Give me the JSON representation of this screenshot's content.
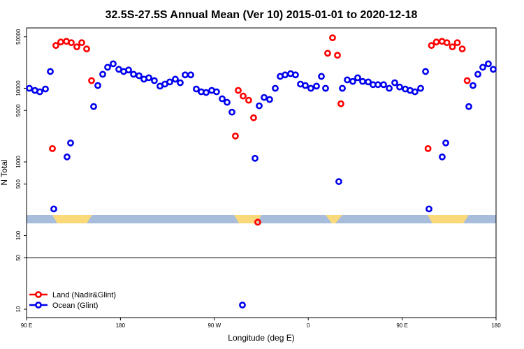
{
  "chart_data": {
    "type": "scatter",
    "title": "32.5S-27.5S Annual Mean (Ver 10)   2015-01-01 to 2020-12-18",
    "x_label": "Longitude (deg E)",
    "y_label": "N Total",
    "xlim": [
      90,
      540
    ],
    "xticks": [
      {
        "value": 90,
        "label": "90 E"
      },
      180,
      {
        "value": 270,
        "label": "90 W"
      },
      {
        "value": 360,
        "label": "0"
      },
      {
        "value": 450,
        "label": "90 E"
      },
      {
        "value": 540,
        "label": "180"
      }
    ],
    "ylim": [
      7.7,
      66000
    ],
    "ylog": true,
    "yticks": [
      10,
      50,
      100,
      500,
      1000,
      5000,
      10000,
      50000
    ],
    "hline": 50,
    "legend": "lower left",
    "series": [
      {
        "name": "Land (Nadir&Glint)",
        "color": "#ff0000",
        "x": [
          114.8,
          118.1,
          122.8,
          128.2,
          132.9,
          138.2,
          142.9,
          147.6,
          152.3,
          290.2,
          292.9,
          297.6,
          302.9,
          307.6,
          311.6,
          378.6,
          383.3,
          388.0,
          391.3,
          474.8,
          478.1,
          482.8,
          488.2,
          492.9,
          498.2,
          502.9,
          507.6,
          512.3
        ],
        "values": [
          1517,
          38100,
          42500,
          43400,
          41600,
          36500,
          41600,
          34200,
          12700,
          2250,
          9360,
          7850,
          6880,
          3980,
          152,
          29900,
          48500,
          28100,
          6170,
          1517,
          38100,
          42500,
          43400,
          41600,
          36500,
          41600,
          34200,
          12700
        ]
      },
      {
        "name": "Ocean (Glint)",
        "color": "#0000ee",
        "x": [
          92.7,
          98.0,
          102.7,
          108.1,
          112.8,
          116.1,
          128.8,
          132.2,
          154.3,
          158.3,
          163.0,
          167.7,
          173.0,
          178.4,
          183.1,
          187.8,
          192.5,
          197.8,
          202.5,
          207.2,
          212.5,
          217.9,
          222.6,
          227.3,
          232.6,
          237.3,
          242.0,
          247.4,
          252.7,
          257.4,
          262.1,
          267.5,
          272.1,
          277.5,
          282.2,
          286.9,
          296.9,
          309.0,
          313.0,
          317.7,
          323.0,
          328.4,
          333.1,
          337.8,
          343.1,
          347.8,
          352.5,
          357.2,
          362.5,
          367.9,
          372.6,
          376.6,
          389.3,
          392.7,
          397.4,
          402.7,
          407.4,
          412.1,
          417.5,
          422.1,
          426.8,
          432.2,
          437.6,
          442.9,
          447.6,
          453.0,
          457.6,
          462.3,
          467.7,
          472.4,
          475.7,
          488.4,
          491.8,
          513.9,
          517.9,
          522.6,
          527.3,
          532.6,
          537.3
        ],
        "values": [
          10000,
          9360,
          8960,
          9780,
          16900,
          230,
          1170,
          1810,
          5650,
          10900,
          15500,
          19300,
          21500,
          18100,
          16900,
          17700,
          15500,
          14800,
          13300,
          13900,
          12700,
          10700,
          11400,
          12200,
          13300,
          11900,
          15200,
          15200,
          9780,
          8960,
          8770,
          9360,
          8960,
          7200,
          6450,
          4740,
          11.4,
          1120,
          5780,
          7510,
          7050,
          10000,
          14500,
          15200,
          15800,
          15200,
          11400,
          10900,
          10000,
          10700,
          14500,
          10000,
          541,
          10000,
          13000,
          12400,
          13900,
          12400,
          12200,
          11200,
          11200,
          11200,
          10000,
          11900,
          10400,
          9780,
          9360,
          8960,
          10000,
          16900,
          230,
          1170,
          1810,
          5650,
          10900,
          15500,
          19300,
          21500,
          18100
        ]
      }
    ]
  }
}
